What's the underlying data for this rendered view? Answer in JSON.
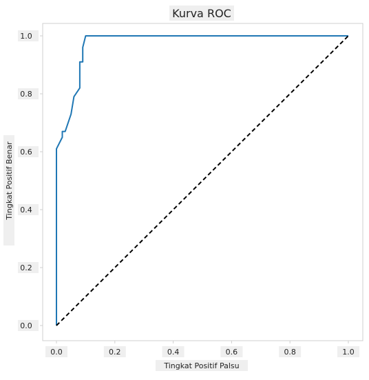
{
  "chart_data": {
    "type": "line",
    "title": "Kurva ROC",
    "xlabel": "Tingkat Positif Palsu",
    "ylabel": "Tingkat Positif Benar",
    "xlim": [
      0.0,
      1.0
    ],
    "ylim": [
      0.0,
      1.0
    ],
    "xticks": [
      "0.0",
      "0.2",
      "0.4",
      "0.6",
      "0.8",
      "1.0"
    ],
    "yticks": [
      "0.0",
      "0.2",
      "0.4",
      "0.6",
      "0.8",
      "1.0"
    ],
    "grid": false,
    "legend": "none",
    "series": [
      {
        "style": "solid",
        "color": "#1f77b4",
        "x": [
          0.0,
          0.0,
          0.0,
          0.02,
          0.02,
          0.03,
          0.05,
          0.06,
          0.06,
          0.08,
          0.08,
          0.09,
          0.09,
          0.1,
          1.0
        ],
        "y": [
          0.0,
          0.0,
          0.61,
          0.65,
          0.67,
          0.67,
          0.73,
          0.79,
          0.79,
          0.82,
          0.91,
          0.91,
          0.96,
          1.0,
          1.0
        ]
      },
      {
        "style": "dashed",
        "color": "#000000",
        "x": [
          0.0,
          1.0
        ],
        "y": [
          0.0,
          1.0
        ]
      }
    ]
  }
}
